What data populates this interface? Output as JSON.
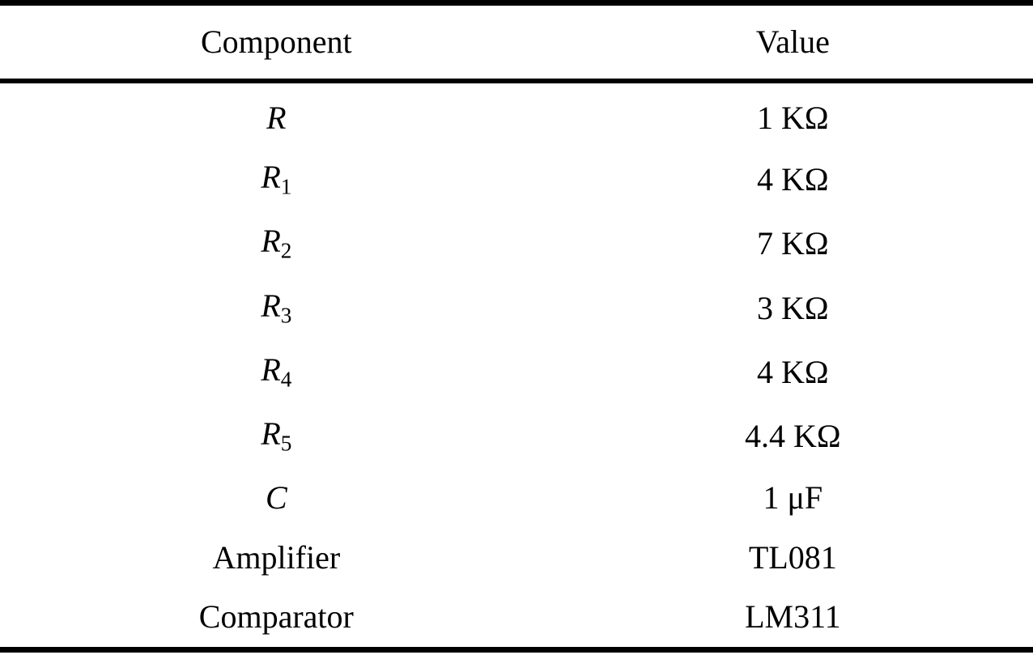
{
  "table": {
    "headers": [
      {
        "label": "Component"
      },
      {
        "label": "Value"
      }
    ],
    "rows": [
      {
        "component": {
          "base": "R",
          "sub": "",
          "math": true
        },
        "value": "1 KΩ"
      },
      {
        "component": {
          "base": "R",
          "sub": "1",
          "math": true
        },
        "value": "4 KΩ"
      },
      {
        "component": {
          "base": "R",
          "sub": "2",
          "math": true
        },
        "value": "7 KΩ"
      },
      {
        "component": {
          "base": "R",
          "sub": "3",
          "math": true
        },
        "value": "3 KΩ"
      },
      {
        "component": {
          "base": "R",
          "sub": "4",
          "math": true
        },
        "value": "4 KΩ"
      },
      {
        "component": {
          "base": "R",
          "sub": "5",
          "math": true
        },
        "value": "4.4 KΩ"
      },
      {
        "component": {
          "base": "C",
          "sub": "",
          "math": true
        },
        "value": "1 μF"
      },
      {
        "component": {
          "base": "Amplifier",
          "sub": "",
          "math": false
        },
        "value": "TL081"
      },
      {
        "component": {
          "base": "Comparator",
          "sub": "",
          "math": false
        },
        "value": "LM311"
      }
    ],
    "colors": {
      "text": "#000000",
      "rule": "#000000",
      "background": "#ffffff"
    }
  }
}
